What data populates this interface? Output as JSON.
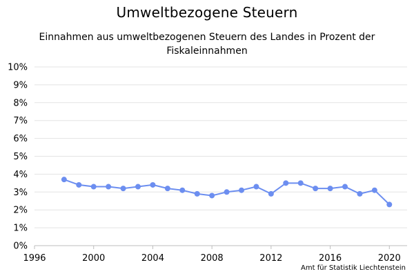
{
  "header": {
    "title": "Umweltbezogene Steuern",
    "subtitle": "Einnahmen aus umweltbezogenen Steuern des Landes in Prozent der Fiskaleinnahmen"
  },
  "credit": "Amt für Statistik Liechtenstein",
  "colors": {
    "series": "#6c8ef0",
    "grid": "#e3e3e3",
    "axis": "#bdbdbd"
  },
  "chart_data": {
    "type": "line",
    "title": "Umweltbezogene Steuern",
    "subtitle": "Einnahmen aus umweltbezogenen Steuern des Landes in Prozent der Fiskaleinnahmen",
    "xlabel": "",
    "ylabel": "",
    "xlim": [
      1996,
      2021.2
    ],
    "ylim": [
      0,
      10
    ],
    "grid": true,
    "x_ticks": [
      "1996",
      "2000",
      "2004",
      "2008",
      "2012",
      "2016",
      "2020"
    ],
    "y_ticks": [
      "0%",
      "1%",
      "2%",
      "3%",
      "4%",
      "5%",
      "6%",
      "7%",
      "8%",
      "9%",
      "10%"
    ],
    "x": [
      1998,
      1999,
      2000,
      2001,
      2002,
      2003,
      2004,
      2005,
      2006,
      2007,
      2008,
      2009,
      2010,
      2011,
      2012,
      2013,
      2014,
      2015,
      2016,
      2017,
      2018,
      2019,
      2020
    ],
    "series": [
      {
        "values": [
          3.7,
          3.4,
          3.3,
          3.3,
          3.2,
          3.3,
          3.4,
          3.2,
          3.1,
          2.9,
          2.8,
          3.0,
          3.1,
          3.3,
          2.9,
          3.5,
          3.5,
          3.2,
          3.2,
          3.3,
          2.9,
          3.1,
          2.3
        ]
      }
    ]
  }
}
